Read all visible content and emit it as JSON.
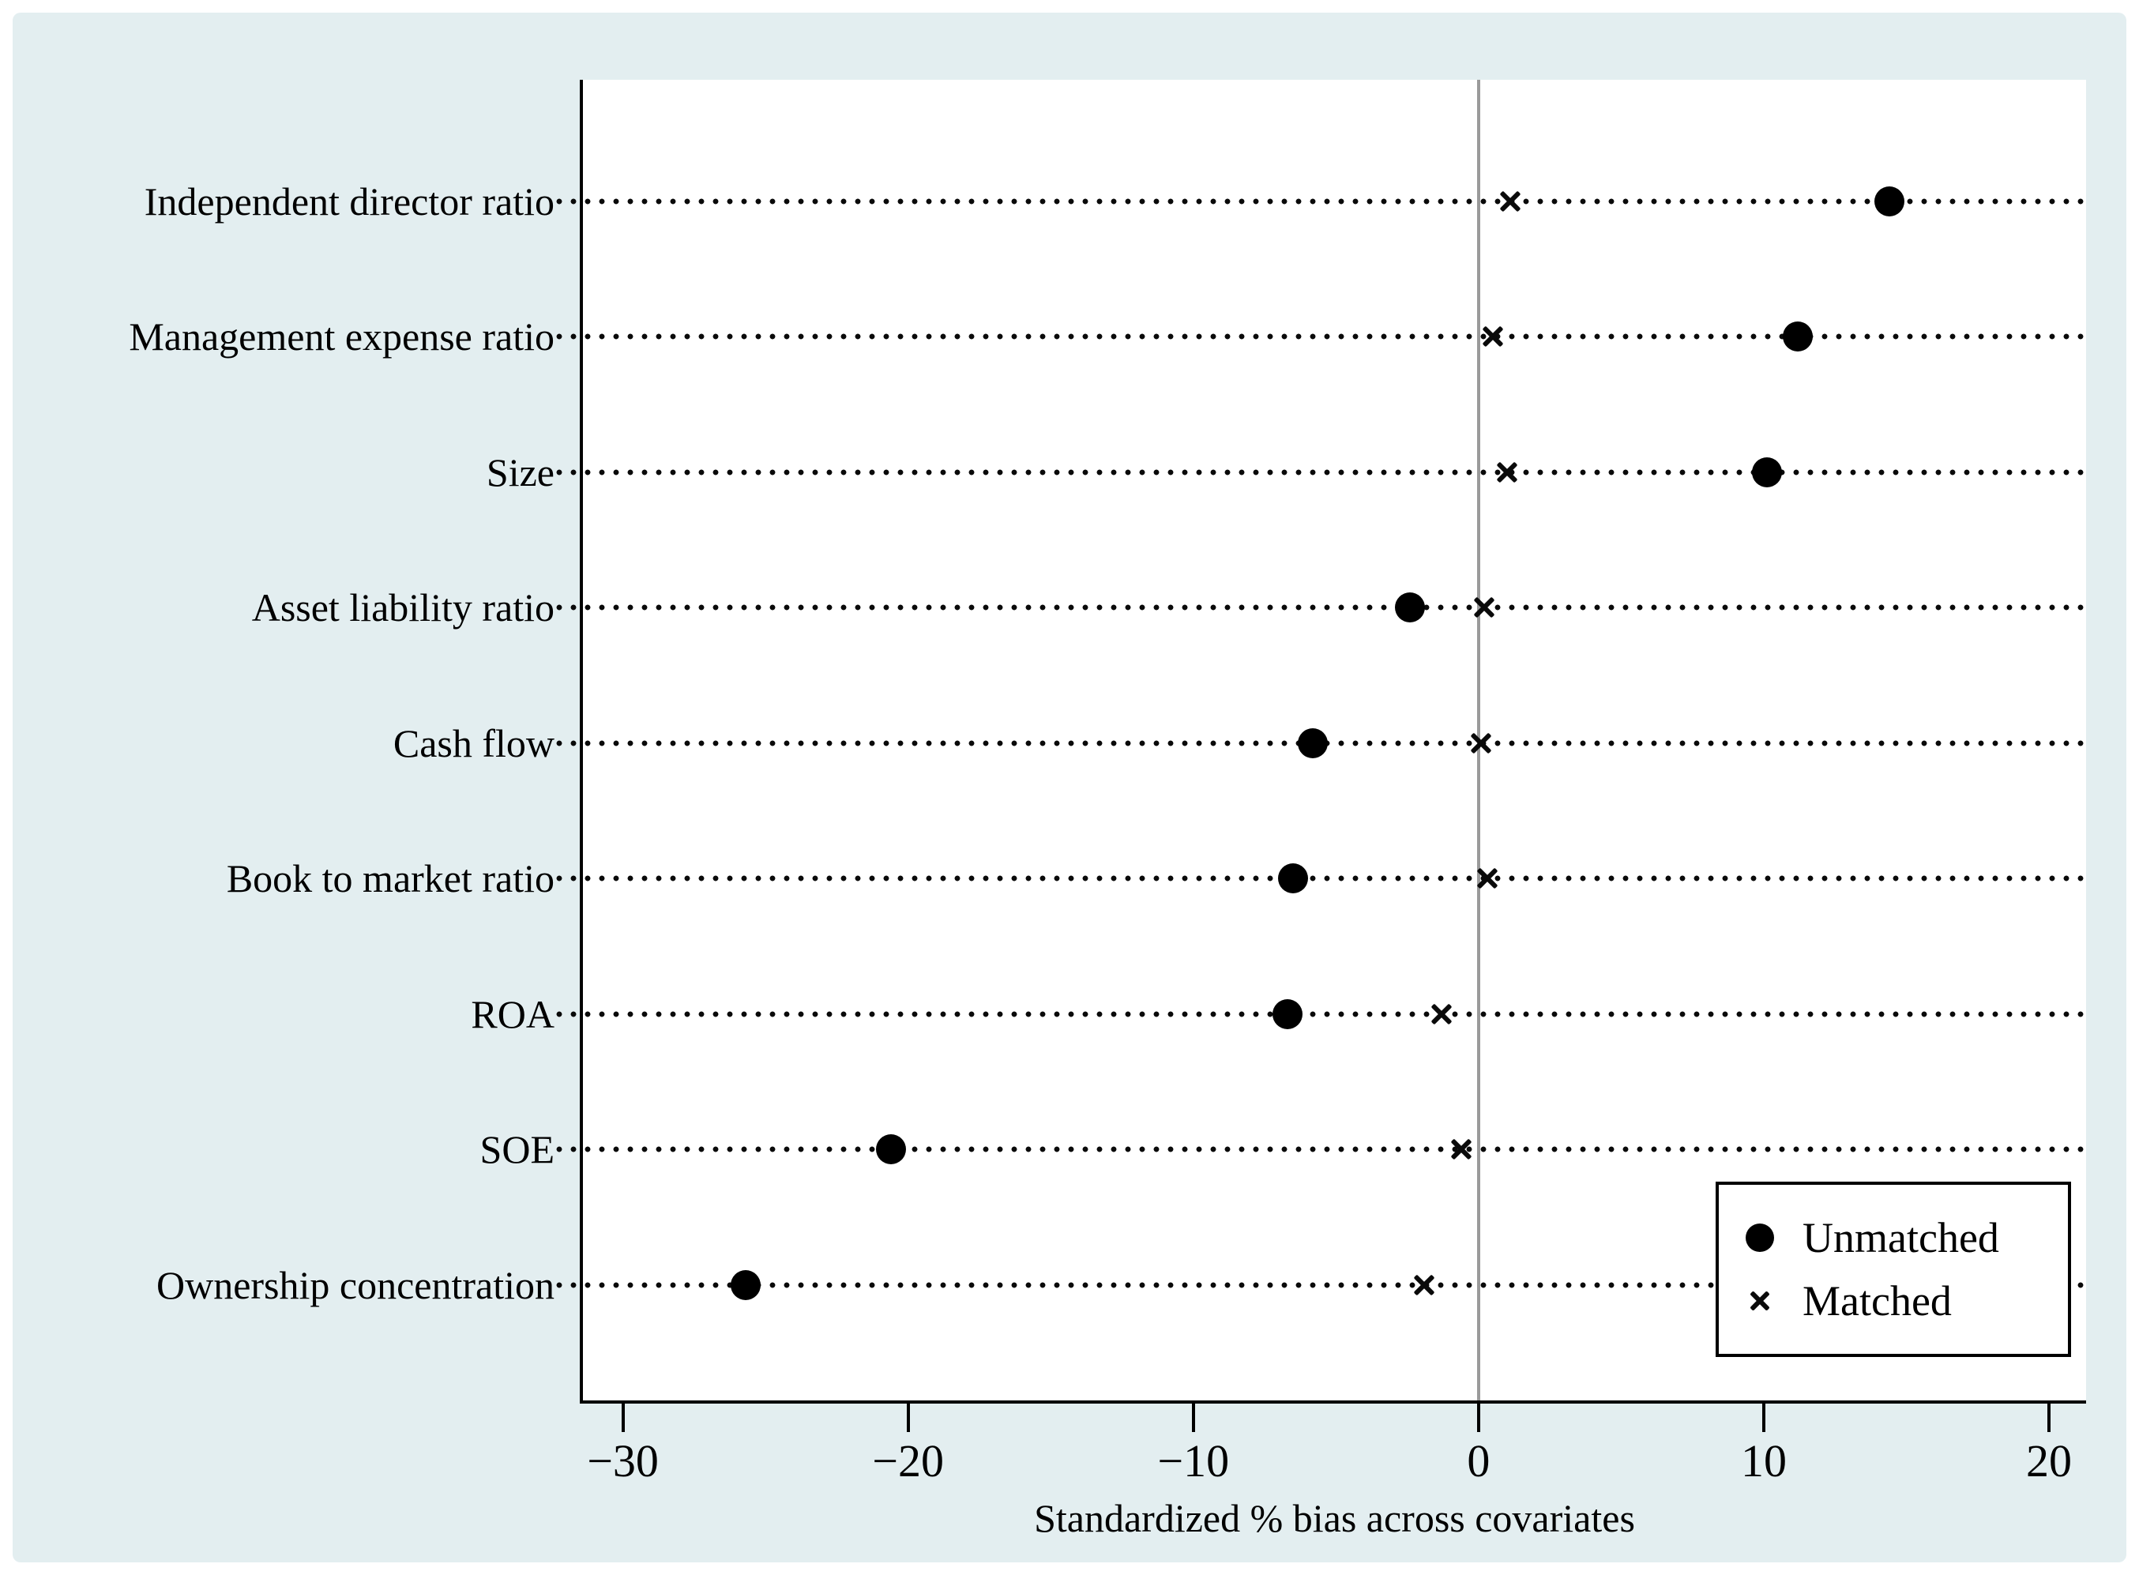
{
  "colors": {
    "figure_background": "#e3eef0",
    "plot_background": "#ffffff",
    "marker": "#000000",
    "zero_line": "#9a9a9a",
    "axis": "#000000"
  },
  "chart_data": {
    "type": "scatter",
    "subtype": "dot-plot-balance",
    "title": "",
    "xlabel": "Standardized % bias across covariates",
    "ylabel": "",
    "categories": [
      "Independent director ratio",
      "Management expense ratio",
      "Size",
      "Asset liability ratio",
      "Cash flow",
      "Book to market ratio",
      "ROA",
      "SOE",
      "Ownership concentration"
    ],
    "series": [
      {
        "name": "Unmatched",
        "marker": "circle",
        "values": [
          14.4,
          11.2,
          10.1,
          -2.4,
          -5.8,
          -6.5,
          -6.7,
          -20.6,
          -25.7
        ]
      },
      {
        "name": "Matched",
        "marker": "x",
        "values": [
          1.1,
          0.5,
          1.0,
          0.2,
          0.1,
          0.3,
          -1.3,
          -0.6,
          -1.9
        ]
      }
    ],
    "xticks": [
      -30,
      -20,
      -10,
      0,
      10,
      20
    ],
    "xtick_labels": [
      "−30",
      "−20",
      "−10",
      "0",
      "10",
      "20"
    ],
    "xlim": [
      -31.4,
      21.3
    ],
    "zero_reference_line": 0,
    "grid": "horizontal-dotted",
    "legend_position": "bottom-right-inside"
  },
  "legend": {
    "items": [
      {
        "label": "Unmatched",
        "marker": "circle"
      },
      {
        "label": "Matched",
        "marker": "x"
      }
    ]
  }
}
